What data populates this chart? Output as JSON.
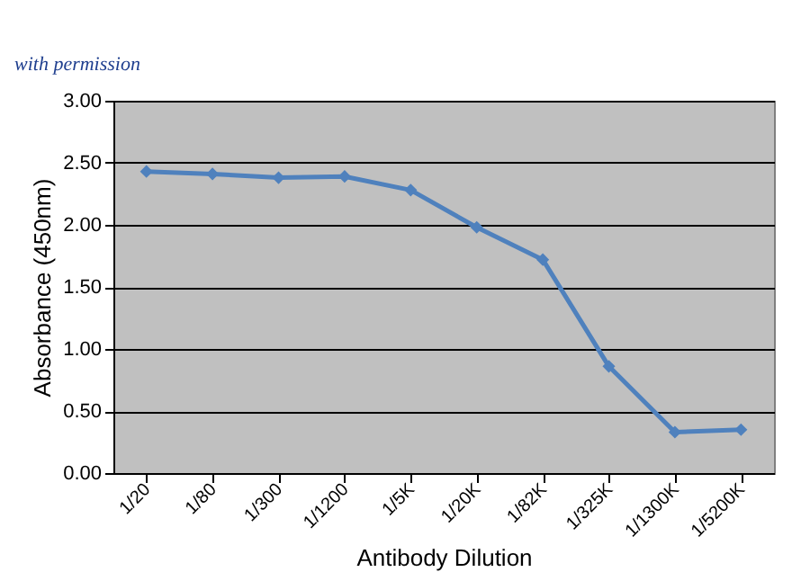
{
  "chart_data": {
    "type": "line",
    "annotations": [
      "with permission"
    ],
    "xlabel": "Antibody Dilution",
    "ylabel": "Absorbance (450nm)",
    "categories": [
      "1/20",
      "1/80",
      "1/300",
      "1/1200",
      "1/5K",
      "1/20K",
      "1/82K",
      "1/325K",
      "1/1300K",
      "1/5200K"
    ],
    "series": [
      {
        "color": "#4f81bd",
        "values": [
          2.43,
          2.41,
          2.38,
          2.39,
          2.28,
          1.98,
          1.72,
          0.86,
          0.33,
          0.35
        ]
      }
    ],
    "ylim": [
      0,
      3
    ],
    "yticks": [
      {
        "value": 0,
        "label": "0.00"
      },
      {
        "value": 0.5,
        "label": "0.50"
      },
      {
        "value": 1,
        "label": "1.00"
      },
      {
        "value": 1.5,
        "label": "1.50"
      },
      {
        "value": 2,
        "label": "2.00"
      },
      {
        "value": 2.5,
        "label": "2.50"
      },
      {
        "value": 3,
        "label": "3.00"
      }
    ],
    "grid": "y",
    "marker": "diamond",
    "legend": false
  }
}
